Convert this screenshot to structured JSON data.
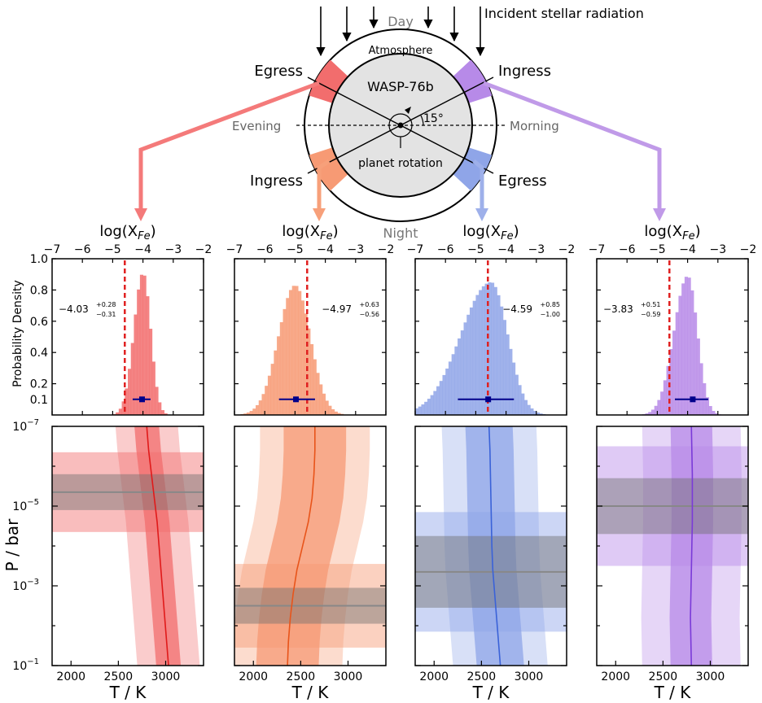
{
  "diagram": {
    "incident_label": "Incident stellar radiation",
    "day_label": "Day",
    "night_label": "Night",
    "atmosphere_label": "Atmosphere",
    "planet_label": "WASP-76b",
    "evening_label": "Evening",
    "morning_label": "Morning",
    "angle_label": "15°",
    "rotation_label": "planet rotation",
    "egress_left": "Egress",
    "ingress_right": "Ingress",
    "ingress_left": "Ingress",
    "egress_right": "Egress"
  },
  "colors": {
    "red": "#f26d6d",
    "orange": "#f79a74",
    "blue": "#8fa5e8",
    "purple": "#b78ae8",
    "median_line": "#d42020",
    "gray_band": "#555555",
    "marker": "#00008b",
    "dashed": "#e02020"
  },
  "axis_text": {
    "top_xlabel": "log(X",
    "top_xlabel_sub": "Fe",
    "top_xlabel_close": ")",
    "hist_ylabel": "Probability Density",
    "profile_ylabel": "P / bar",
    "profile_xlabel": "T / K"
  },
  "chart_data": [
    {
      "type": "histogram",
      "panel": "egress-evening",
      "color": "red",
      "xlim": [
        -7,
        -2
      ],
      "xticks": [
        "−7",
        "−6",
        "−5",
        "−4",
        "−3",
        "−2"
      ],
      "ylim": [
        0,
        1.0
      ],
      "yticks": [
        "0.1",
        "0.2",
        "0.4",
        "0.6",
        "0.8",
        "1.0"
      ],
      "median": -4.03,
      "err_plus": 0.28,
      "err_minus": 0.31,
      "median_text": "−4.03",
      "err_plus_text": "+0.28",
      "err_minus_text": "−0.31",
      "dashed_x": -4.6,
      "marker_y": 0.1,
      "annotation_side": "left",
      "peak": 0.91,
      "peak_x": -4.0,
      "sigma_left": 0.3,
      "sigma_right": 0.25
    },
    {
      "type": "histogram",
      "panel": "ingress-evening",
      "color": "orange",
      "xlim": [
        -7,
        -2
      ],
      "xticks": [
        "−7",
        "−6",
        "−5",
        "−4",
        "−3",
        "−2"
      ],
      "ylim": [
        0,
        1.0
      ],
      "median": -4.97,
      "err_plus": 0.63,
      "err_minus": 0.56,
      "median_text": "−4.97",
      "err_plus_text": "+0.63",
      "err_minus_text": "−0.56",
      "dashed_x": -4.6,
      "marker_y": 0.1,
      "annotation_side": "right",
      "peak": 0.83,
      "peak_x": -5.0,
      "sigma_left": 0.55,
      "sigma_right": 0.5
    },
    {
      "type": "histogram",
      "panel": "egress-morning",
      "color": "blue",
      "xlim": [
        -7,
        -2
      ],
      "xticks": [
        "−7",
        "−6",
        "−5",
        "−4",
        "−3",
        "−2"
      ],
      "ylim": [
        0,
        1.0
      ],
      "median": -4.59,
      "err_plus": 0.85,
      "err_minus": 1.0,
      "median_text": "−4.59",
      "err_plus_text": "+0.85",
      "err_minus_text": "−1.00",
      "dashed_x": -4.6,
      "marker_y": 0.1,
      "annotation_side": "right",
      "peak": 0.85,
      "peak_x": -4.5,
      "sigma_left": 1.0,
      "sigma_right": 0.55
    },
    {
      "type": "histogram",
      "panel": "ingress-morning",
      "color": "purple",
      "xlim": [
        -7,
        -2
      ],
      "xticks": [
        "−7",
        "−6",
        "−5",
        "−4",
        "−3",
        "−2"
      ],
      "ylim": [
        0,
        1.0
      ],
      "median": -3.83,
      "err_plus": 0.51,
      "err_minus": 0.59,
      "median_text": "−3.83",
      "err_plus_text": "+0.51",
      "err_minus_text": "−0.59",
      "dashed_x": -4.6,
      "marker_y": 0.1,
      "annotation_side": "left",
      "peak": 0.89,
      "peak_x": -4.0,
      "sigma_left": 0.45,
      "sigma_right": 0.32
    },
    {
      "type": "area",
      "panel": "egress-evening-profile",
      "color": "red",
      "xlim": [
        1800,
        3400
      ],
      "xticks": [
        "2000",
        "2500",
        "3000"
      ],
      "ylim_log": [
        -7,
        -1
      ],
      "yticks": [
        "10",
        "10",
        "10"
      ],
      "yticks_exp": [
        "−7",
        "−5",
        "−3"
      ],
      "ylast": "10",
      "ylast_exp": "−1",
      "median_T": [
        2800,
        2820,
        2850,
        2880,
        2910,
        2930,
        2950,
        2970,
        2990,
        3010,
        3030
      ],
      "sigma1": 130,
      "sigma2": 330,
      "band_logP": -5.35,
      "band1": 0.45,
      "band2": 1.0
    },
    {
      "type": "area",
      "panel": "ingress-evening-profile",
      "color": "orange",
      "xlim": [
        1800,
        3400
      ],
      "xticks": [
        "2000",
        "2500",
        "3000"
      ],
      "ylim_log": [
        -7,
        -1
      ],
      "median_T": [
        2650,
        2650,
        2640,
        2620,
        2580,
        2520,
        2460,
        2420,
        2390,
        2370,
        2360
      ],
      "sigma1": 330,
      "sigma2": 580,
      "band_logP": -2.5,
      "band1": 0.45,
      "band2": 1.05
    },
    {
      "type": "area",
      "panel": "egress-morning-profile",
      "color": "blue",
      "xlim": [
        1800,
        3400
      ],
      "xticks": [
        "2000",
        "2500",
        "3000"
      ],
      "ylim_log": [
        -7,
        -1
      ],
      "median_T": [
        2580,
        2590,
        2595,
        2600,
        2605,
        2610,
        2620,
        2640,
        2660,
        2680,
        2700
      ],
      "sigma1": 250,
      "sigma2": 500,
      "band_logP": -3.35,
      "band1": 0.9,
      "band2": 1.5
    },
    {
      "type": "area",
      "panel": "ingress-morning-profile",
      "color": "purple",
      "xlim": [
        1800,
        3400
      ],
      "xticks": [
        "2000",
        "2500",
        "3000"
      ],
      "ylim_log": [
        -7,
        -1
      ],
      "median_T": [
        2800,
        2805,
        2810,
        2810,
        2810,
        2805,
        2800,
        2795,
        2790,
        2795,
        2800
      ],
      "sigma1": 220,
      "sigma2": 520,
      "band_logP": -5.0,
      "band1": 0.7,
      "band2": 1.5
    }
  ]
}
